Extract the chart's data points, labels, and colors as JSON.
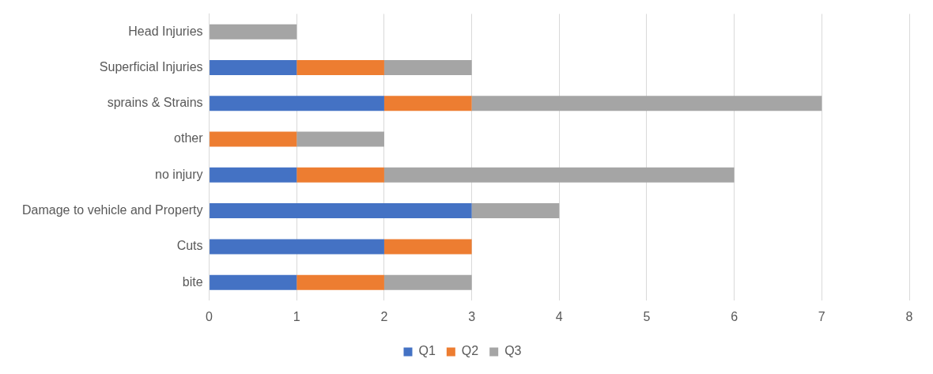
{
  "chart_data": {
    "type": "bar",
    "orientation": "horizontal",
    "stacked": true,
    "categories": [
      "Head Injuries",
      "Superficial Injuries",
      "sprains & Strains",
      "other",
      "no injury",
      "Damage to vehicle and Property",
      "Cuts",
      "bite"
    ],
    "series": [
      {
        "name": "Q1",
        "color": "#4472c4",
        "values": [
          null,
          1,
          2,
          null,
          1,
          3,
          2,
          1
        ]
      },
      {
        "name": "Q2",
        "color": "#ed7d31",
        "values": [
          null,
          1,
          1,
          1,
          1,
          null,
          1,
          1
        ]
      },
      {
        "name": "Q3",
        "color": "#a5a5a5",
        "values": [
          1,
          1,
          4,
          1,
          4,
          1,
          null,
          1
        ]
      }
    ],
    "xlim": [
      0,
      8
    ],
    "xticks": [
      0,
      1,
      2,
      3,
      4,
      5,
      6,
      7,
      8
    ],
    "grid": "x",
    "legend": "bottom"
  }
}
